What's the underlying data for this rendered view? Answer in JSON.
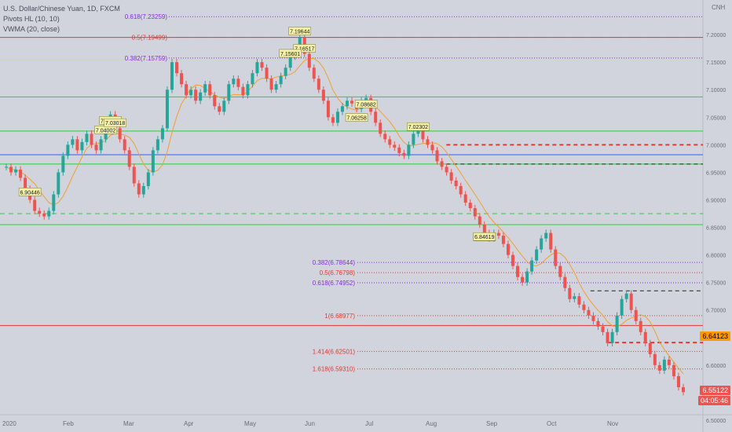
{
  "legend": {
    "title": "U.S. Dollar/Chinese Yuan, 1D, FXCM",
    "indicator1": "Pivots HL (10, 10)",
    "indicator2": "VWMA (20, close)"
  },
  "axis": {
    "currency": "CNH",
    "last_price": "6.55122",
    "countdown": "04:05:46",
    "level_badge": "6.64123"
  },
  "colors": {
    "background": "#d1d4dc",
    "up": "#26a69a",
    "down": "#ef5350",
    "vwma": "#f0a030",
    "fib_purple": "#8a2be2",
    "fib_red": "#e53935",
    "green_line": "#2ecc40",
    "blue_line": "#2e5bff"
  },
  "chart_data": {
    "type": "candlestick",
    "ylim": [
      6.51,
      7.26
    ],
    "y_ticks": [
      "7.20000",
      "7.15000",
      "7.10000",
      "7.05000",
      "7.00000",
      "6.95000",
      "6.90000",
      "6.85000",
      "6.80000",
      "6.75000",
      "6.70000",
      "6.65000",
      "6.60000",
      "6.55000",
      "6.50000"
    ],
    "x_ticks": [
      "2020",
      "Feb",
      "Mar",
      "Apr",
      "May",
      "Jun",
      "Jul",
      "Aug",
      "Sep",
      "Oct",
      "Nov"
    ],
    "pivot_labels": [
      {
        "text": "7.02302",
        "value": 7.02302
      },
      {
        "text": "7.05710",
        "value": 7.0571
      },
      {
        "text": "6.90446",
        "value": 6.90446
      },
      {
        "text": "6.84563",
        "value": 6.84563
      },
      {
        "text": "7.16517",
        "value": 7.16517
      },
      {
        "text": "7.08682",
        "value": 7.08682
      },
      {
        "text": "7.15601",
        "value": 7.15601
      },
      {
        "text": "7.06258",
        "value": 7.06258
      },
      {
        "text": "7.19644",
        "value": 7.19644
      },
      {
        "text": "7.04002",
        "value": 7.04002
      },
      {
        "text": "7.03018",
        "value": 7.03018
      },
      {
        "text": "6.84619",
        "value": 6.84619
      }
    ],
    "fib_upper": [
      {
        "text": "0.618(7.23259)",
        "value": 7.23259,
        "color": "purple"
      },
      {
        "text": "0.5(7.19499)",
        "value": 7.19499,
        "color": "red"
      },
      {
        "text": "0.382(7.15759)",
        "value": 7.15759,
        "color": "purple"
      }
    ],
    "fib_lower": [
      {
        "text": "0.382(6.78644)",
        "value": 6.78644,
        "color": "purple"
      },
      {
        "text": "0.5(6.76798)",
        "value": 6.76798,
        "color": "red"
      },
      {
        "text": "0.618(6.74952)",
        "value": 6.74952,
        "color": "purple"
      },
      {
        "text": "1(6.68977)",
        "value": 6.68977,
        "color": "red"
      },
      {
        "text": "1.414(6.62501)",
        "value": 6.62501,
        "color": "red"
      },
      {
        "text": "1.618(6.59310)",
        "value": 6.5931,
        "color": "red"
      }
    ],
    "horizontal_levels": [
      {
        "value": 7.195,
        "color": "red",
        "style": "solid"
      },
      {
        "value": 7.155,
        "color": "yellow",
        "style": "solid"
      },
      {
        "value": 7.087,
        "color": "green",
        "style": "solid"
      },
      {
        "value": 7.025,
        "color": "green",
        "style": "solid"
      },
      {
        "value": 6.982,
        "color": "blue",
        "style": "solid"
      },
      {
        "value": 6.965,
        "color": "green",
        "style": "solid"
      },
      {
        "value": 6.875,
        "color": "green",
        "style": "dashed"
      },
      {
        "value": 6.855,
        "color": "green",
        "style": "solid"
      },
      {
        "value": 6.672,
        "color": "red",
        "style": "solid"
      }
    ],
    "partial_levels": [
      {
        "value": 7.0,
        "color": "red",
        "style": "dashed",
        "from": 0.635
      },
      {
        "value": 6.965,
        "color": "black",
        "style": "dashed",
        "from": 0.635
      },
      {
        "value": 6.735,
        "color": "black",
        "style": "dashed",
        "from": 0.84
      },
      {
        "value": 6.641,
        "color": "red",
        "style": "dashed",
        "from": 0.865
      }
    ],
    "series_close": [
      6.96,
      6.95,
      6.955,
      6.94,
      6.92,
      6.9,
      6.88,
      6.875,
      6.87,
      6.88,
      6.91,
      6.95,
      6.98,
      7.0,
      7.01,
      6.99,
      7.005,
      7.02,
      7.0,
      6.99,
      7.01,
      7.04,
      7.055,
      7.03,
      7.01,
      6.99,
      6.96,
      6.93,
      6.91,
      6.925,
      6.95,
      6.99,
      7.01,
      7.03,
      7.1,
      7.15,
      7.13,
      7.11,
      7.09,
      7.1,
      7.08,
      7.095,
      7.11,
      7.09,
      7.07,
      7.06,
      7.08,
      7.11,
      7.12,
      7.105,
      7.09,
      7.11,
      7.13,
      7.15,
      7.14,
      7.12,
      7.1,
      7.11,
      7.125,
      7.14,
      7.16,
      7.175,
      7.195,
      7.165,
      7.14,
      7.12,
      7.1,
      7.08,
      7.05,
      7.04,
      7.06,
      7.07,
      7.08,
      7.075,
      7.065,
      7.08,
      7.085,
      7.06,
      7.04,
      7.02,
      7.01,
      7.0,
      6.995,
      6.985,
      6.98,
      7.0,
      7.02,
      7.025,
      7.01,
      7.0,
      6.99,
      6.97,
      6.96,
      6.95,
      6.935,
      6.925,
      6.91,
      6.895,
      6.885,
      6.87,
      6.855,
      6.84,
      6.83,
      6.84,
      6.835,
      6.82,
      6.8,
      6.78,
      6.76,
      6.75,
      6.77,
      6.79,
      6.81,
      6.83,
      6.84,
      6.81,
      6.78,
      6.76,
      6.74,
      6.72,
      6.725,
      6.71,
      6.7,
      6.69,
      6.68,
      6.67,
      6.66,
      6.64,
      6.66,
      6.69,
      6.72,
      6.73,
      6.7,
      6.68,
      6.66,
      6.64,
      6.62,
      6.6,
      6.59,
      6.61,
      6.6,
      6.58,
      6.56,
      6.551
    ]
  }
}
